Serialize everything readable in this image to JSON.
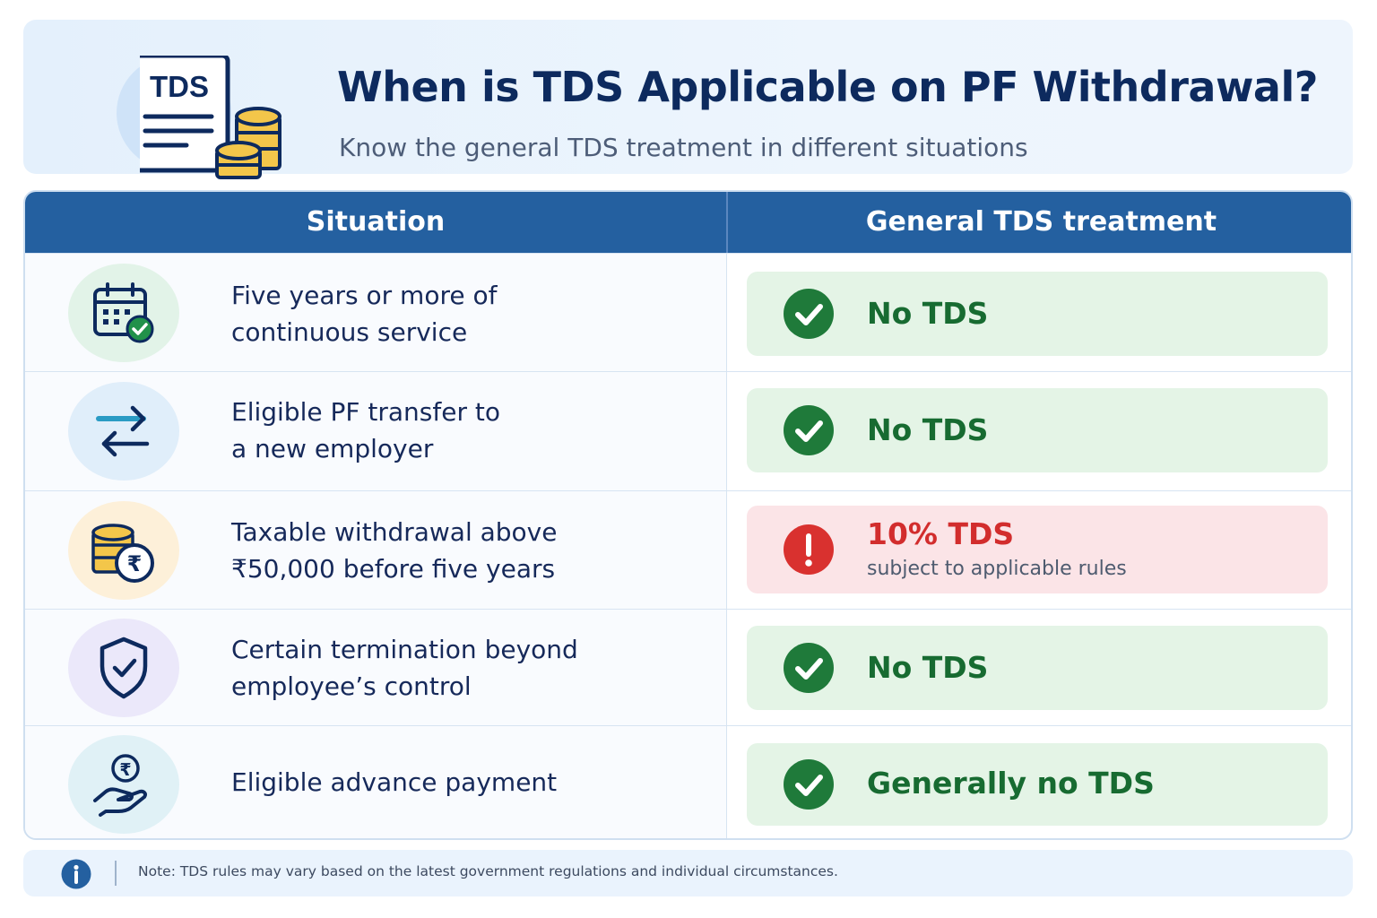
{
  "header": {
    "icon_text": "TDS",
    "title": "When is TDS Applicable on PF Withdrawal?",
    "subtitle": "Know the general TDS treatment in different situations"
  },
  "table": {
    "columns": [
      "Situation",
      "General TDS treatment"
    ],
    "rows": [
      {
        "icon": "calendar-check-icon",
        "situation_line1": "Five years or more of",
        "situation_line2": "continuous service",
        "treatment": "No TDS",
        "status": "ok"
      },
      {
        "icon": "transfer-arrows-icon",
        "situation_line1": "Eligible PF transfer to",
        "situation_line2": "a new employer",
        "treatment": "No TDS",
        "status": "ok"
      },
      {
        "icon": "coins-rupee-icon",
        "situation_line1": "Taxable withdrawal above",
        "situation_line2": "₹50,000 before five years",
        "treatment": "10% TDS",
        "treatment_note": "subject to applicable rules",
        "status": "warning"
      },
      {
        "icon": "shield-check-icon",
        "situation_line1": "Certain termination beyond",
        "situation_line2": "employee’s control",
        "treatment": "No TDS",
        "status": "ok"
      },
      {
        "icon": "hand-rupee-icon",
        "situation_line1": "Eligible advance payment",
        "situation_line2": "",
        "treatment": "Generally no TDS",
        "status": "ok"
      }
    ]
  },
  "note": {
    "text": "Note: TDS rules may vary based on the latest government regulations and individual circumstances."
  },
  "colors": {
    "header_bar": "#2460a0",
    "title": "#0d2a5e",
    "ok_green": "#1f7a3a",
    "ok_bg": "#e4f4e6",
    "warn_red": "#d22d2d",
    "warn_bg": "#fbe4e7"
  }
}
